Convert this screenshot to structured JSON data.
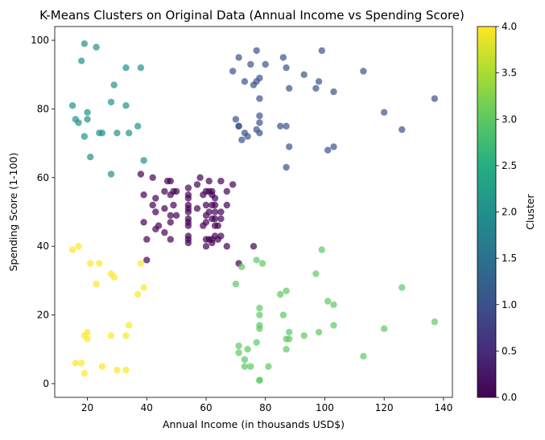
{
  "chart_data": {
    "type": "scatter",
    "title": "K-Means Clusters on Original Data (Annual Income vs Spending Score)",
    "xlabel": "Annual Income (in thousands USD$)",
    "ylabel": "Spending Score (1-100)",
    "xlim": [
      9,
      143
    ],
    "ylim": [
      -4,
      104
    ],
    "xticks": [
      20,
      40,
      60,
      80,
      100,
      120,
      140
    ],
    "yticks": [
      0,
      20,
      40,
      60,
      80,
      100
    ],
    "colorbar": {
      "label": "Cluster",
      "range": [
        0.0,
        4.0
      ],
      "ticks": [
        "0.0",
        "0.5",
        "1.0",
        "1.5",
        "2.0",
        "2.5",
        "3.0",
        "3.5",
        "4.0"
      ],
      "colormap": "viridis"
    },
    "grid": false,
    "series": [
      {
        "cluster": 0,
        "color": "#440154",
        "points": [
          [
            38,
            61
          ],
          [
            39,
            55
          ],
          [
            39,
            47
          ],
          [
            40,
            42
          ],
          [
            40,
            36
          ],
          [
            42,
            52
          ],
          [
            42,
            60
          ],
          [
            43,
            54
          ],
          [
            43,
            45
          ],
          [
            43,
            50
          ],
          [
            44,
            46
          ],
          [
            46,
            51
          ],
          [
            46,
            56
          ],
          [
            46,
            44
          ],
          [
            47,
            59
          ],
          [
            48,
            55
          ],
          [
            48,
            49
          ],
          [
            48,
            47
          ],
          [
            48,
            42
          ],
          [
            48,
            59
          ],
          [
            49,
            52
          ],
          [
            49,
            56
          ],
          [
            50,
            49
          ],
          [
            50,
            56
          ],
          [
            54,
            50
          ],
          [
            54,
            52
          ],
          [
            54,
            55
          ],
          [
            54,
            57
          ],
          [
            54,
            46
          ],
          [
            54,
            42
          ],
          [
            54,
            41
          ],
          [
            54,
            54
          ],
          [
            54,
            47
          ],
          [
            54,
            51
          ],
          [
            54,
            48
          ],
          [
            54,
            43
          ],
          [
            57,
            51
          ],
          [
            57,
            58
          ],
          [
            58,
            60
          ],
          [
            59,
            55
          ],
          [
            59,
            46
          ],
          [
            60,
            52
          ],
          [
            60,
            49
          ],
          [
            60,
            47
          ],
          [
            60,
            42
          ],
          [
            60,
            40
          ],
          [
            60,
            56
          ],
          [
            61,
            59
          ],
          [
            61,
            50
          ],
          [
            61,
            56
          ],
          [
            61,
            42
          ],
          [
            62,
            48
          ],
          [
            62,
            55
          ],
          [
            62,
            41
          ],
          [
            62,
            52
          ],
          [
            62,
            42
          ],
          [
            62,
            56
          ],
          [
            63,
            50
          ],
          [
            63,
            46
          ],
          [
            63,
            43
          ],
          [
            63,
            52
          ],
          [
            63,
            48
          ],
          [
            63,
            54
          ],
          [
            64,
            42
          ],
          [
            64,
            46
          ],
          [
            65,
            48
          ],
          [
            65,
            50
          ],
          [
            65,
            43
          ],
          [
            65,
            59
          ],
          [
            67,
            56
          ],
          [
            67,
            40
          ],
          [
            67,
            52
          ],
          [
            69,
            58
          ],
          [
            71,
            35
          ],
          [
            76,
            40
          ]
        ]
      },
      {
        "cluster": 1,
        "color": "#3b528b",
        "points": [
          [
            69,
            91
          ],
          [
            70,
            77
          ],
          [
            71,
            95
          ],
          [
            71,
            75
          ],
          [
            71,
            75
          ],
          [
            72,
            71
          ],
          [
            73,
            88
          ],
          [
            73,
            73
          ],
          [
            74,
            72
          ],
          [
            75,
            93
          ],
          [
            76,
            87
          ],
          [
            77,
            97
          ],
          [
            77,
            74
          ],
          [
            77,
            88
          ],
          [
            78,
            76
          ],
          [
            78,
            89
          ],
          [
            78,
            78
          ],
          [
            78,
            83
          ],
          [
            78,
            73
          ],
          [
            80,
            93
          ],
          [
            85,
            75
          ],
          [
            86,
            95
          ],
          [
            87,
            63
          ],
          [
            87,
            75
          ],
          [
            87,
            92
          ],
          [
            88,
            86
          ],
          [
            88,
            69
          ],
          [
            93,
            90
          ],
          [
            97,
            86
          ],
          [
            98,
            88
          ],
          [
            99,
            97
          ],
          [
            101,
            68
          ],
          [
            103,
            85
          ],
          [
            103,
            69
          ],
          [
            113,
            91
          ],
          [
            120,
            79
          ],
          [
            126,
            74
          ],
          [
            137,
            83
          ]
        ]
      },
      {
        "cluster": 2,
        "color": "#21918c",
        "points": [
          [
            15,
            81
          ],
          [
            16,
            77
          ],
          [
            17,
            76
          ],
          [
            18,
            94
          ],
          [
            19,
            72
          ],
          [
            19,
            99
          ],
          [
            20,
            77
          ],
          [
            20,
            79
          ],
          [
            21,
            66
          ],
          [
            23,
            98
          ],
          [
            24,
            73
          ],
          [
            25,
            73
          ],
          [
            28,
            82
          ],
          [
            28,
            61
          ],
          [
            29,
            87
          ],
          [
            30,
            73
          ],
          [
            33,
            92
          ],
          [
            33,
            81
          ],
          [
            34,
            73
          ],
          [
            37,
            75
          ],
          [
            38,
            92
          ],
          [
            39,
            65
          ]
        ]
      },
      {
        "cluster": 3,
        "color": "#5ec962",
        "points": [
          [
            70,
            29
          ],
          [
            71,
            11
          ],
          [
            71,
            9
          ],
          [
            72,
            34
          ],
          [
            73,
            5
          ],
          [
            73,
            7
          ],
          [
            74,
            10
          ],
          [
            75,
            5
          ],
          [
            77,
            12
          ],
          [
            77,
            36
          ],
          [
            78,
            22
          ],
          [
            78,
            17
          ],
          [
            78,
            20
          ],
          [
            78,
            16
          ],
          [
            78,
            1
          ],
          [
            78,
            1
          ],
          [
            79,
            35
          ],
          [
            81,
            5
          ],
          [
            85,
            26
          ],
          [
            86,
            20
          ],
          [
            87,
            27
          ],
          [
            87,
            10
          ],
          [
            87,
            13
          ],
          [
            88,
            13
          ],
          [
            88,
            15
          ],
          [
            93,
            14
          ],
          [
            97,
            32
          ],
          [
            98,
            15
          ],
          [
            99,
            39
          ],
          [
            101,
            24
          ],
          [
            103,
            23
          ],
          [
            103,
            17
          ],
          [
            113,
            8
          ],
          [
            120,
            16
          ],
          [
            126,
            28
          ],
          [
            137,
            18
          ]
        ]
      },
      {
        "cluster": 4,
        "color": "#fde725",
        "points": [
          [
            15,
            39
          ],
          [
            16,
            6
          ],
          [
            17,
            40
          ],
          [
            18,
            6
          ],
          [
            19,
            3
          ],
          [
            19,
            14
          ],
          [
            20,
            15
          ],
          [
            20,
            13
          ],
          [
            21,
            35
          ],
          [
            23,
            29
          ],
          [
            24,
            35
          ],
          [
            25,
            5
          ],
          [
            28,
            14
          ],
          [
            28,
            32
          ],
          [
            29,
            31
          ],
          [
            30,
            4
          ],
          [
            33,
            4
          ],
          [
            33,
            14
          ],
          [
            34,
            17
          ],
          [
            37,
            26
          ],
          [
            38,
            35
          ],
          [
            39,
            28
          ]
        ]
      }
    ]
  }
}
